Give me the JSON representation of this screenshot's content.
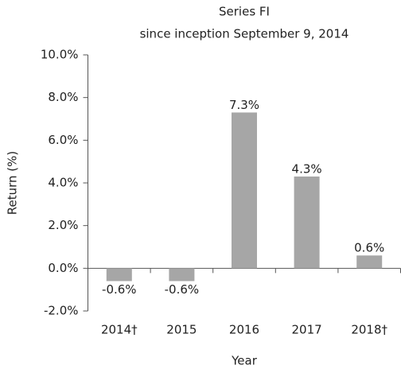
{
  "chart_data": {
    "type": "bar",
    "title": "Series FI",
    "subtitle": "since inception September 9, 2014",
    "x_label": "Year",
    "y_label": "Return (%)",
    "categories": [
      "2014†",
      "2015",
      "2016",
      "2017",
      "2018†"
    ],
    "values": [
      -0.6,
      -0.6,
      7.3,
      4.3,
      0.6
    ],
    "value_labels": [
      "-0.6%",
      "-0.6%",
      "7.3%",
      "4.3%",
      "0.6%"
    ],
    "color": "#a6a6a6",
    "ylim": [
      -2,
      10
    ],
    "yticks": [
      {
        "value": -2,
        "label": "-2.0%"
      },
      {
        "value": 0,
        "label": "0.0%"
      },
      {
        "value": 2,
        "label": "2.0%"
      },
      {
        "value": 4,
        "label": "4.0%"
      },
      {
        "value": 6,
        "label": "6.0%"
      },
      {
        "value": 8,
        "label": "8.0%"
      },
      {
        "value": 10,
        "label": "10.0%"
      }
    ],
    "grid": false
  }
}
